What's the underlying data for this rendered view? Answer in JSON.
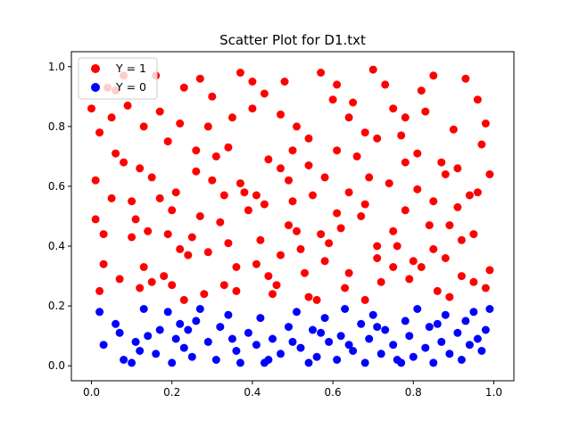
{
  "chart_data": {
    "type": "scatter",
    "title": "Scatter Plot for D1.txt",
    "xlabel": "",
    "ylabel": "",
    "xlim": [
      -0.05,
      1.05
    ],
    "ylim": [
      -0.05,
      1.05
    ],
    "xticks": [
      "0.0",
      "0.2",
      "0.4",
      "0.6",
      "0.8",
      "1.0"
    ],
    "yticks": [
      "0.0",
      "0.2",
      "0.4",
      "0.6",
      "0.8",
      "1.0"
    ],
    "grid": false,
    "legend": "upper-left",
    "series": [
      {
        "name": "Y = 1",
        "color": "#ff0000",
        "points": [
          [
            0.01,
            0.62
          ],
          [
            0.02,
            0.25
          ],
          [
            0.03,
            0.44
          ],
          [
            0.04,
            0.93
          ],
          [
            0.06,
            0.92
          ],
          [
            0.08,
            0.68
          ],
          [
            0.1,
            0.55
          ],
          [
            0.11,
            0.49
          ],
          [
            0.13,
            0.33
          ],
          [
            0.15,
            0.28
          ],
          [
            0.17,
            0.85
          ],
          [
            0.19,
            0.75
          ],
          [
            0.21,
            0.58
          ],
          [
            0.23,
            0.22
          ],
          [
            0.25,
            0.43
          ],
          [
            0.27,
            0.96
          ],
          [
            0.29,
            0.38
          ],
          [
            0.31,
            0.7
          ],
          [
            0.33,
            0.27
          ],
          [
            0.35,
            0.83
          ],
          [
            0.37,
            0.61
          ],
          [
            0.39,
            0.52
          ],
          [
            0.41,
            0.34
          ],
          [
            0.43,
            0.91
          ],
          [
            0.45,
            0.24
          ],
          [
            0.47,
            0.66
          ],
          [
            0.49,
            0.47
          ],
          [
            0.51,
            0.8
          ],
          [
            0.53,
            0.31
          ],
          [
            0.55,
            0.57
          ],
          [
            0.57,
            0.98
          ],
          [
            0.59,
            0.41
          ],
          [
            0.61,
            0.72
          ],
          [
            0.63,
            0.26
          ],
          [
            0.65,
            0.88
          ],
          [
            0.67,
            0.5
          ],
          [
            0.69,
            0.63
          ],
          [
            0.71,
            0.36
          ],
          [
            0.73,
            0.94
          ],
          [
            0.75,
            0.45
          ],
          [
            0.77,
            0.77
          ],
          [
            0.79,
            0.29
          ],
          [
            0.81,
            0.59
          ],
          [
            0.83,
            0.85
          ],
          [
            0.85,
            0.39
          ],
          [
            0.87,
            0.68
          ],
          [
            0.89,
            0.23
          ],
          [
            0.91,
            0.53
          ],
          [
            0.93,
            0.96
          ],
          [
            0.95,
            0.44
          ],
          [
            0.97,
            0.74
          ],
          [
            0.99,
            0.32
          ],
          [
            0.02,
            0.78
          ],
          [
            0.05,
            0.56
          ],
          [
            0.07,
            0.29
          ],
          [
            0.09,
            0.87
          ],
          [
            0.12,
            0.66
          ],
          [
            0.14,
            0.45
          ],
          [
            0.16,
            0.97
          ],
          [
            0.18,
            0.3
          ],
          [
            0.2,
            0.52
          ],
          [
            0.22,
            0.81
          ],
          [
            0.24,
            0.37
          ],
          [
            0.26,
            0.65
          ],
          [
            0.28,
            0.24
          ],
          [
            0.3,
            0.9
          ],
          [
            0.32,
            0.48
          ],
          [
            0.34,
            0.73
          ],
          [
            0.36,
            0.33
          ],
          [
            0.38,
            0.58
          ],
          [
            0.4,
            0.86
          ],
          [
            0.42,
            0.42
          ],
          [
            0.44,
            0.69
          ],
          [
            0.46,
            0.27
          ],
          [
            0.48,
            0.95
          ],
          [
            0.5,
            0.55
          ],
          [
            0.52,
            0.39
          ],
          [
            0.54,
            0.76
          ],
          [
            0.56,
            0.22
          ],
          [
            0.58,
            0.63
          ],
          [
            0.6,
            0.89
          ],
          [
            0.62,
            0.46
          ],
          [
            0.64,
            0.31
          ],
          [
            0.66,
            0.7
          ],
          [
            0.68,
            0.54
          ],
          [
            0.7,
            0.99
          ],
          [
            0.72,
            0.28
          ],
          [
            0.74,
            0.61
          ],
          [
            0.76,
            0.4
          ],
          [
            0.78,
            0.83
          ],
          [
            0.8,
            0.35
          ],
          [
            0.82,
            0.92
          ],
          [
            0.84,
            0.47
          ],
          [
            0.86,
            0.25
          ],
          [
            0.88,
            0.64
          ],
          [
            0.9,
            0.79
          ],
          [
            0.92,
            0.42
          ],
          [
            0.94,
            0.57
          ],
          [
            0.96,
            0.89
          ],
          [
            0.98,
            0.26
          ],
          [
            0.0,
            0.86
          ],
          [
            0.03,
            0.34
          ],
          [
            0.06,
            0.71
          ],
          [
            0.1,
            0.43
          ],
          [
            0.13,
            0.8
          ],
          [
            0.17,
            0.56
          ],
          [
            0.2,
            0.27
          ],
          [
            0.23,
            0.93
          ],
          [
            0.27,
            0.5
          ],
          [
            0.3,
            0.62
          ],
          [
            0.34,
            0.41
          ],
          [
            0.37,
            0.98
          ],
          [
            0.41,
            0.57
          ],
          [
            0.44,
            0.3
          ],
          [
            0.47,
            0.84
          ],
          [
            0.51,
            0.45
          ],
          [
            0.54,
            0.67
          ],
          [
            0.58,
            0.35
          ],
          [
            0.61,
            0.94
          ],
          [
            0.64,
            0.58
          ],
          [
            0.68,
            0.22
          ],
          [
            0.71,
            0.76
          ],
          [
            0.75,
            0.33
          ],
          [
            0.78,
            0.52
          ],
          [
            0.81,
            0.71
          ],
          [
            0.85,
            0.97
          ],
          [
            0.88,
            0.36
          ],
          [
            0.91,
            0.66
          ],
          [
            0.95,
            0.28
          ],
          [
            0.98,
            0.81
          ],
          [
            0.01,
            0.49
          ],
          [
            0.08,
            0.97
          ],
          [
            0.15,
            0.63
          ],
          [
            0.22,
            0.39
          ],
          [
            0.29,
            0.8
          ],
          [
            0.36,
            0.25
          ],
          [
            0.43,
            0.54
          ],
          [
            0.5,
            0.72
          ],
          [
            0.57,
            0.44
          ],
          [
            0.64,
            0.83
          ],
          [
            0.71,
            0.4
          ],
          [
            0.78,
            0.68
          ],
          [
            0.85,
            0.55
          ],
          [
            0.92,
            0.3
          ],
          [
            0.99,
            0.64
          ],
          [
            0.05,
            0.83
          ],
          [
            0.19,
            0.44
          ],
          [
            0.33,
            0.57
          ],
          [
            0.47,
            0.37
          ],
          [
            0.61,
            0.51
          ],
          [
            0.75,
            0.86
          ],
          [
            0.89,
            0.47
          ],
          [
            0.12,
            0.26
          ],
          [
            0.26,
            0.72
          ],
          [
            0.4,
            0.95
          ],
          [
            0.54,
            0.23
          ],
          [
            0.68,
            0.78
          ],
          [
            0.82,
            0.33
          ],
          [
            0.96,
            0.58
          ],
          [
            0.49,
            0.62
          ]
        ]
      },
      {
        "name": "Y = 0",
        "color": "#0000ff",
        "points": [
          [
            0.02,
            0.18
          ],
          [
            0.03,
            0.07
          ],
          [
            0.07,
            0.11
          ],
          [
            0.08,
            0.02
          ],
          [
            0.11,
            0.08
          ],
          [
            0.12,
            0.05
          ],
          [
            0.13,
            0.19
          ],
          [
            0.14,
            0.1
          ],
          [
            0.16,
            0.04
          ],
          [
            0.19,
            0.18
          ],
          [
            0.2,
            0.01
          ],
          [
            0.21,
            0.09
          ],
          [
            0.22,
            0.14
          ],
          [
            0.23,
            0.06
          ],
          [
            0.24,
            0.12
          ],
          [
            0.25,
            0.03
          ],
          [
            0.27,
            0.19
          ],
          [
            0.29,
            0.08
          ],
          [
            0.31,
            0.02
          ],
          [
            0.32,
            0.13
          ],
          [
            0.34,
            0.17
          ],
          [
            0.36,
            0.05
          ],
          [
            0.37,
            0.01
          ],
          [
            0.39,
            0.11
          ],
          [
            0.41,
            0.07
          ],
          [
            0.42,
            0.16
          ],
          [
            0.44,
            0.02
          ],
          [
            0.45,
            0.09
          ],
          [
            0.47,
            0.04
          ],
          [
            0.49,
            0.13
          ],
          [
            0.51,
            0.18
          ],
          [
            0.52,
            0.06
          ],
          [
            0.54,
            0.01
          ],
          [
            0.55,
            0.12
          ],
          [
            0.56,
            0.03
          ],
          [
            0.58,
            0.16
          ],
          [
            0.59,
            0.08
          ],
          [
            0.61,
            0.02
          ],
          [
            0.62,
            0.1
          ],
          [
            0.63,
            0.19
          ],
          [
            0.65,
            0.05
          ],
          [
            0.67,
            0.14
          ],
          [
            0.68,
            0.01
          ],
          [
            0.69,
            0.09
          ],
          [
            0.7,
            0.17
          ],
          [
            0.72,
            0.04
          ],
          [
            0.73,
            0.12
          ],
          [
            0.75,
            0.07
          ],
          [
            0.76,
            0.02
          ],
          [
            0.78,
            0.15
          ],
          [
            0.79,
            0.1
          ],
          [
            0.8,
            0.03
          ],
          [
            0.81,
            0.19
          ],
          [
            0.83,
            0.06
          ],
          [
            0.84,
            0.13
          ],
          [
            0.85,
            0.01
          ],
          [
            0.87,
            0.08
          ],
          [
            0.88,
            0.17
          ],
          [
            0.89,
            0.04
          ],
          [
            0.91,
            0.11
          ],
          [
            0.92,
            0.02
          ],
          [
            0.93,
            0.15
          ],
          [
            0.94,
            0.07
          ],
          [
            0.95,
            0.18
          ],
          [
            0.97,
            0.05
          ],
          [
            0.98,
            0.12
          ],
          [
            0.99,
            0.19
          ],
          [
            0.06,
            0.14
          ],
          [
            0.1,
            0.01
          ],
          [
            0.17,
            0.12
          ],
          [
            0.26,
            0.15
          ],
          [
            0.35,
            0.09
          ],
          [
            0.43,
            0.01
          ],
          [
            0.5,
            0.08
          ],
          [
            0.57,
            0.11
          ],
          [
            0.64,
            0.07
          ],
          [
            0.71,
            0.13
          ],
          [
            0.77,
            0.01
          ],
          [
            0.86,
            0.14
          ],
          [
            0.96,
            0.09
          ]
        ]
      }
    ]
  }
}
